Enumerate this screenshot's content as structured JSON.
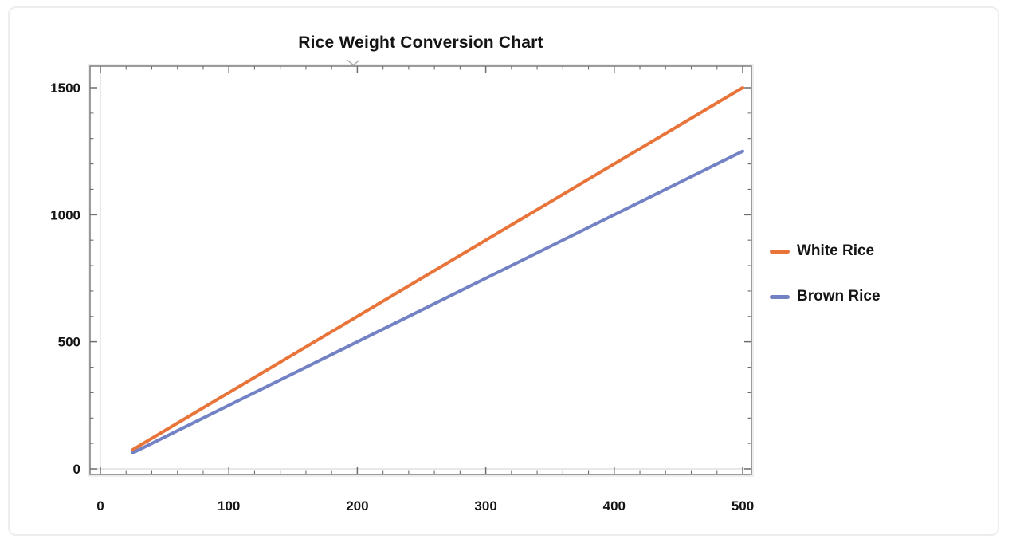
{
  "page": {
    "background_color": "#ffffff",
    "card_border_color": "#ededed"
  },
  "chart_data": {
    "type": "line",
    "title": "Rice Weight Conversion Chart",
    "xlabel": "",
    "ylabel": "",
    "xlim": [
      0,
      500
    ],
    "ylim": [
      0,
      1500
    ],
    "x_ticks": [
      0,
      100,
      200,
      300,
      400,
      500
    ],
    "x_minor_step": 20,
    "y_ticks": [
      0,
      500,
      1000,
      1500
    ],
    "y_minor_step": 100,
    "grid": "off",
    "zero_axis_lines": true,
    "legend_position": "right-outside",
    "frame_color": "#828282",
    "frame_halo_color": "#e2e2e2",
    "tick_color": "#6f6f6f",
    "zero_axis_color": "#dadada",
    "tick_label_color": "#141414",
    "line_width": 4,
    "series": [
      {
        "name": "White Rice",
        "color": "#e8743a",
        "points": [
          [
            25,
            75
          ],
          [
            500,
            1500
          ]
        ]
      },
      {
        "name": "Brown Rice",
        "color": "#7282c4",
        "points": [
          [
            25,
            62.5
          ],
          [
            500,
            1250
          ]
        ]
      }
    ]
  }
}
